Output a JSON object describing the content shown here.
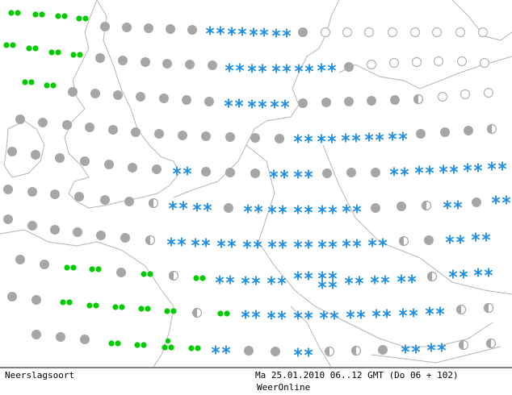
{
  "footer": {
    "title": "Neerslagsoort",
    "timestamp": "Ma 25.01.2010 06..12 GMT (Do 06 + 102)",
    "source": "WeerOnline"
  }
}
